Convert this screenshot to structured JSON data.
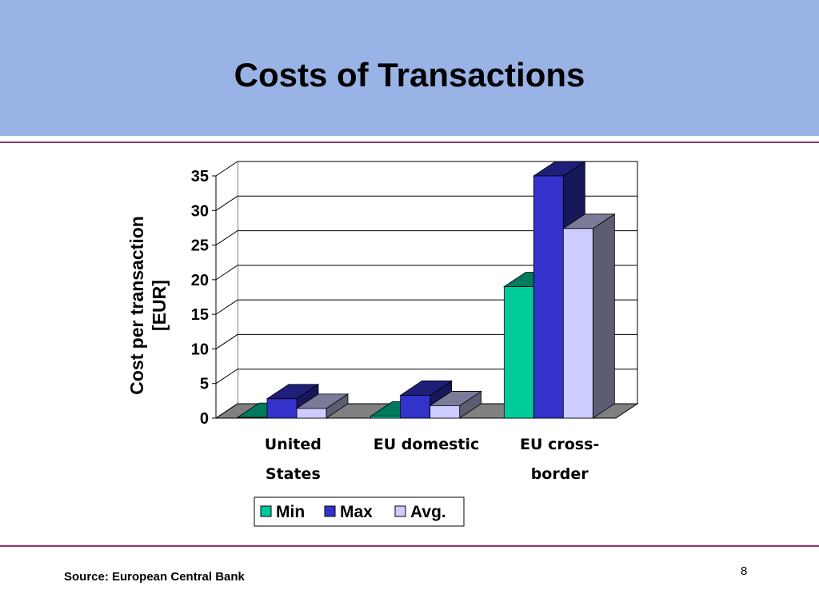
{
  "header": {
    "title": "Costs of Transactions"
  },
  "chart_data": {
    "type": "bar3d",
    "y_label": "Cost per transaction [EUR]",
    "categories": [
      "United States",
      "EU domestic",
      "EU cross-border"
    ],
    "series": [
      {
        "name": "Min",
        "color": "#00cc99",
        "values": [
          0.1,
          0.3,
          19
        ]
      },
      {
        "name": "Max",
        "color": "#3333cc",
        "values": [
          2.8,
          3.3,
          35
        ]
      },
      {
        "name": "Avg.",
        "color": "#ccccff",
        "values": [
          1.4,
          1.8,
          27.4
        ]
      }
    ],
    "ylim": [
      0,
      35
    ],
    "yticks": [
      0,
      5,
      10,
      15,
      20,
      25,
      30,
      35
    ],
    "grid": true,
    "legend": "bottom"
  },
  "footer": {
    "source": "Source: European Central Bank",
    "page": "8"
  }
}
